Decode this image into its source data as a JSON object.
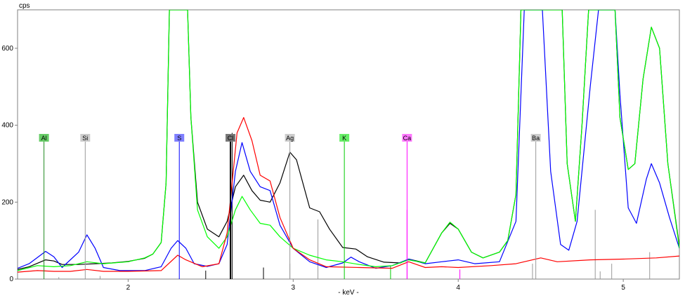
{
  "chart_data": {
    "type": "line",
    "ylabel": "cps",
    "xlabel": "- keV -",
    "xlim": [
      1.33,
      5.34
    ],
    "ylim": [
      0,
      700
    ],
    "x_ticks": [
      2,
      3,
      4,
      5
    ],
    "y_ticks": [
      0,
      200,
      400,
      600
    ],
    "grid": false,
    "series": [
      {
        "color": "#000000",
        "points": [
          [
            1.33,
            25
          ],
          [
            1.4,
            32
          ],
          [
            1.5,
            50
          ],
          [
            1.55,
            47
          ],
          [
            1.6,
            38
          ],
          [
            1.7,
            38
          ],
          [
            1.8,
            40
          ],
          [
            1.9,
            42
          ],
          [
            2.0,
            46
          ],
          [
            2.1,
            54
          ],
          [
            2.15,
            65
          ],
          [
            2.2,
            95
          ],
          [
            2.23,
            250
          ],
          [
            2.25,
            700
          ],
          [
            2.36,
            700
          ],
          [
            2.38,
            420
          ],
          [
            2.42,
            200
          ],
          [
            2.48,
            130
          ],
          [
            2.55,
            110
          ],
          [
            2.6,
            150
          ],
          [
            2.65,
            240
          ],
          [
            2.7,
            270
          ],
          [
            2.75,
            230
          ],
          [
            2.8,
            205
          ],
          [
            2.86,
            200
          ],
          [
            2.92,
            250
          ],
          [
            2.98,
            330
          ],
          [
            3.02,
            310
          ],
          [
            3.1,
            185
          ],
          [
            3.16,
            175
          ],
          [
            3.22,
            130
          ],
          [
            3.3,
            82
          ],
          [
            3.38,
            78
          ],
          [
            3.45,
            58
          ],
          [
            3.55,
            44
          ],
          [
            3.65,
            42
          ],
          [
            3.7,
            52
          ],
          [
            3.8,
            42
          ],
          [
            3.9,
            120
          ],
          [
            3.95,
            145
          ],
          [
            4.0,
            130
          ],
          [
            4.08,
            70
          ],
          [
            4.15,
            55
          ],
          [
            4.25,
            70
          ],
          [
            4.3,
            100
          ],
          [
            4.35,
            220
          ],
          [
            4.38,
            700
          ],
          [
            4.63,
            700
          ],
          [
            4.66,
            300
          ],
          [
            4.71,
            150
          ],
          [
            4.75,
            400
          ],
          [
            4.79,
            700
          ],
          [
            4.95,
            700
          ],
          [
            4.98,
            420
          ],
          [
            5.03,
            285
          ],
          [
            5.07,
            300
          ],
          [
            5.12,
            520
          ],
          [
            5.17,
            655
          ],
          [
            5.22,
            600
          ],
          [
            5.27,
            300
          ],
          [
            5.34,
            85
          ]
        ]
      },
      {
        "color": "#0000ff",
        "points": [
          [
            1.33,
            28
          ],
          [
            1.4,
            40
          ],
          [
            1.5,
            72
          ],
          [
            1.55,
            58
          ],
          [
            1.6,
            30
          ],
          [
            1.7,
            70
          ],
          [
            1.75,
            115
          ],
          [
            1.8,
            80
          ],
          [
            1.85,
            30
          ],
          [
            1.95,
            22
          ],
          [
            2.1,
            22
          ],
          [
            2.2,
            32
          ],
          [
            2.26,
            80
          ],
          [
            2.3,
            100
          ],
          [
            2.35,
            80
          ],
          [
            2.4,
            40
          ],
          [
            2.48,
            33
          ],
          [
            2.55,
            40
          ],
          [
            2.6,
            90
          ],
          [
            2.65,
            280
          ],
          [
            2.69,
            355
          ],
          [
            2.74,
            280
          ],
          [
            2.8,
            240
          ],
          [
            2.86,
            230
          ],
          [
            2.92,
            140
          ],
          [
            3.0,
            80
          ],
          [
            3.1,
            45
          ],
          [
            3.2,
            30
          ],
          [
            3.3,
            42
          ],
          [
            3.35,
            57
          ],
          [
            3.4,
            45
          ],
          [
            3.5,
            28
          ],
          [
            3.6,
            35
          ],
          [
            3.7,
            52
          ],
          [
            3.8,
            40
          ],
          [
            3.9,
            45
          ],
          [
            4.0,
            50
          ],
          [
            4.1,
            40
          ],
          [
            4.25,
            45
          ],
          [
            4.35,
            150
          ],
          [
            4.4,
            700
          ],
          [
            4.51,
            700
          ],
          [
            4.56,
            280
          ],
          [
            4.62,
            90
          ],
          [
            4.67,
            75
          ],
          [
            4.72,
            150
          ],
          [
            4.8,
            500
          ],
          [
            4.85,
            700
          ],
          [
            4.95,
            700
          ],
          [
            4.98,
            480
          ],
          [
            5.03,
            185
          ],
          [
            5.08,
            145
          ],
          [
            5.14,
            260
          ],
          [
            5.17,
            300
          ],
          [
            5.22,
            250
          ],
          [
            5.28,
            160
          ],
          [
            5.34,
            80
          ]
        ]
      },
      {
        "color": "#00ff00",
        "points": [
          [
            1.33,
            22
          ],
          [
            1.45,
            35
          ],
          [
            1.55,
            32
          ],
          [
            1.65,
            35
          ],
          [
            1.75,
            45
          ],
          [
            1.85,
            40
          ],
          [
            2.0,
            45
          ],
          [
            2.1,
            55
          ],
          [
            2.15,
            65
          ],
          [
            2.2,
            95
          ],
          [
            2.23,
            250
          ],
          [
            2.25,
            700
          ],
          [
            2.36,
            700
          ],
          [
            2.38,
            420
          ],
          [
            2.42,
            180
          ],
          [
            2.48,
            110
          ],
          [
            2.55,
            80
          ],
          [
            2.6,
            110
          ],
          [
            2.65,
            180
          ],
          [
            2.69,
            215
          ],
          [
            2.74,
            180
          ],
          [
            2.8,
            145
          ],
          [
            2.86,
            140
          ],
          [
            2.92,
            110
          ],
          [
            3.0,
            80
          ],
          [
            3.1,
            62
          ],
          [
            3.2,
            50
          ],
          [
            3.3,
            45
          ],
          [
            3.4,
            38
          ],
          [
            3.5,
            32
          ],
          [
            3.6,
            35
          ],
          [
            3.7,
            50
          ],
          [
            3.8,
            42
          ],
          [
            3.9,
            120
          ],
          [
            3.95,
            148
          ],
          [
            4.0,
            130
          ],
          [
            4.08,
            70
          ],
          [
            4.15,
            55
          ],
          [
            4.25,
            70
          ],
          [
            4.3,
            100
          ],
          [
            4.35,
            220
          ],
          [
            4.38,
            700
          ],
          [
            4.63,
            700
          ],
          [
            4.66,
            300
          ],
          [
            4.71,
            150
          ],
          [
            4.75,
            400
          ],
          [
            4.79,
            700
          ],
          [
            4.95,
            700
          ],
          [
            4.98,
            420
          ],
          [
            5.03,
            285
          ],
          [
            5.07,
            300
          ],
          [
            5.12,
            520
          ],
          [
            5.17,
            655
          ],
          [
            5.22,
            600
          ],
          [
            5.27,
            300
          ],
          [
            5.34,
            80
          ]
        ]
      },
      {
        "color": "#ff0000",
        "points": [
          [
            1.33,
            18
          ],
          [
            1.45,
            22
          ],
          [
            1.55,
            20
          ],
          [
            1.65,
            20
          ],
          [
            1.75,
            25
          ],
          [
            1.85,
            20
          ],
          [
            2.0,
            20
          ],
          [
            2.2,
            22
          ],
          [
            2.3,
            62
          ],
          [
            2.35,
            50
          ],
          [
            2.45,
            32
          ],
          [
            2.55,
            40
          ],
          [
            2.6,
            120
          ],
          [
            2.66,
            380
          ],
          [
            2.7,
            420
          ],
          [
            2.75,
            360
          ],
          [
            2.8,
            270
          ],
          [
            2.86,
            255
          ],
          [
            2.92,
            160
          ],
          [
            3.0,
            80
          ],
          [
            3.1,
            50
          ],
          [
            3.2,
            32
          ],
          [
            3.4,
            30
          ],
          [
            3.6,
            28
          ],
          [
            3.7,
            45
          ],
          [
            3.8,
            30
          ],
          [
            3.9,
            32
          ],
          [
            4.0,
            30
          ],
          [
            4.2,
            35
          ],
          [
            4.35,
            40
          ],
          [
            4.5,
            55
          ],
          [
            4.6,
            45
          ],
          [
            4.8,
            50
          ],
          [
            5.0,
            52
          ],
          [
            5.2,
            55
          ],
          [
            5.34,
            60
          ]
        ]
      }
    ],
    "elements": [
      {
        "label": "Al",
        "x": 1.49,
        "color": "#228b22",
        "bg": "#66cc66"
      },
      {
        "label": "Si",
        "x": 1.74,
        "color": "#999999",
        "bg": "#cccccc"
      },
      {
        "label": "S",
        "x": 2.31,
        "color": "#0000ff",
        "bg": "#7f7fff"
      },
      {
        "label": "Cl",
        "x": 2.62,
        "color": "#000000",
        "bg": "#777777"
      },
      {
        "label": "Ag",
        "x": 2.98,
        "color": "#999999",
        "bg": "#cccccc"
      },
      {
        "label": "K",
        "x": 3.31,
        "color": "#00cc00",
        "bg": "#66ee66"
      },
      {
        "label": "Ca",
        "x": 3.69,
        "color": "#ff00ff",
        "bg": "#ff77ff"
      },
      {
        "label": "Ba",
        "x": 4.47,
        "color": "#999999",
        "bg": "#cccccc"
      }
    ],
    "minor_lines": [
      {
        "x": 1.58,
        "v": 5,
        "color": "#999999"
      },
      {
        "x": 1.83,
        "v": 8,
        "color": "#999999"
      },
      {
        "x": 2.47,
        "v": 22,
        "color": "#000000"
      },
      {
        "x": 2.63,
        "v": 380,
        "color": "#000000"
      },
      {
        "x": 2.82,
        "v": 30,
        "color": "#000000"
      },
      {
        "x": 2.98,
        "v": 40,
        "color": "#999999"
      },
      {
        "x": 3.15,
        "v": 155,
        "color": "#999999"
      },
      {
        "x": 3.59,
        "v": 35,
        "color": "#00cc00"
      },
      {
        "x": 3.69,
        "v": 180,
        "color": "#ff00ff"
      },
      {
        "x": 4.01,
        "v": 25,
        "color": "#ff00ff"
      },
      {
        "x": 4.45,
        "v": 40,
        "color": "#999999"
      },
      {
        "x": 4.83,
        "v": 180,
        "color": "#999999"
      },
      {
        "x": 4.86,
        "v": 20,
        "color": "#999999"
      },
      {
        "x": 4.93,
        "v": 40,
        "color": "#999999"
      },
      {
        "x": 5.16,
        "v": 70,
        "color": "#999999"
      }
    ]
  }
}
